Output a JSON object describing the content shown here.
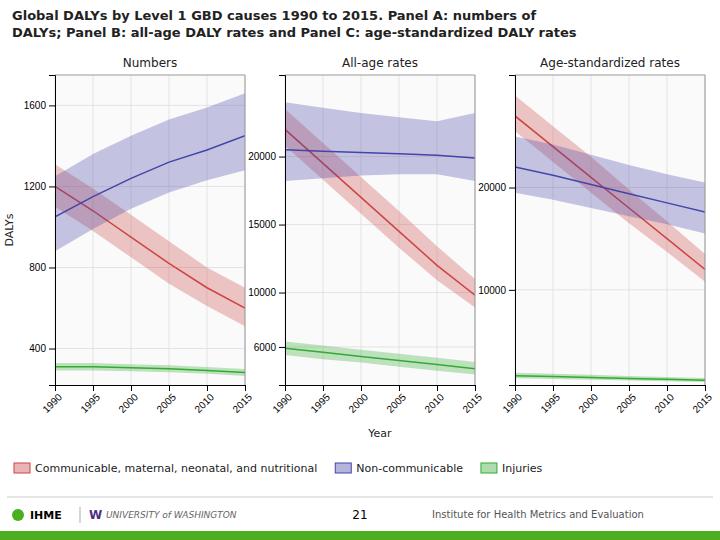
{
  "title": [
    "Global DALYs by Level 1 GBD causes 1990 to 2015.  Panel A: numbers of",
    "DALYs; Panel B: all-age DALY rates and Panel C: age-standardized DALY rates"
  ],
  "annotations": [
    "IHME",
    "W",
    "UNIVERSITY of WASHINGTON",
    "21",
    "Institute for Health Metrics and Evaluation"
  ],
  "chart_data": [
    {
      "type": "line",
      "title": "Numbers",
      "ylabel": "DALYs",
      "x": [
        1990,
        1995,
        2000,
        2005,
        2010,
        2015
      ],
      "xlim": [
        1990,
        2015
      ],
      "xticks": [
        1990,
        1995,
        2000,
        2005,
        2010,
        2015
      ],
      "ylim": [
        220,
        1750
      ],
      "yticks": [
        400,
        800,
        1200,
        1600
      ],
      "grid": true,
      "legend": "bottom",
      "series": [
        {
          "name": "Communicable, maternal, neonatal, and nutritional",
          "color": "#cc4444",
          "values": [
            1200,
            1080,
            950,
            820,
            700,
            600
          ],
          "lower": [
            1100,
            980,
            850,
            720,
            610,
            510
          ],
          "upper": [
            1310,
            1190,
            1060,
            930,
            800,
            700
          ]
        },
        {
          "name": "Non-communicable",
          "color": "#4444aa",
          "values": [
            1050,
            1150,
            1240,
            1320,
            1380,
            1450
          ],
          "lower": [
            880,
            990,
            1090,
            1170,
            1230,
            1280
          ],
          "upper": [
            1250,
            1360,
            1450,
            1530,
            1590,
            1660
          ]
        },
        {
          "name": "Injuries",
          "color": "#33aa33",
          "values": [
            310,
            310,
            305,
            300,
            292,
            282
          ],
          "lower": [
            292,
            292,
            288,
            283,
            275,
            265
          ],
          "upper": [
            328,
            328,
            322,
            317,
            309,
            299
          ]
        }
      ]
    },
    {
      "type": "line",
      "title": "All-age rates",
      "xlabel": "Year",
      "x": [
        1990,
        1995,
        2000,
        2005,
        2010,
        2015
      ],
      "xlim": [
        1990,
        2015
      ],
      "xticks": [
        1990,
        1995,
        2000,
        2005,
        2010,
        2015
      ],
      "ylim": [
        3200,
        26000
      ],
      "yticks": [
        6000,
        10000,
        15000,
        20000
      ],
      "grid": true,
      "series": [
        {
          "name": "Communicable, maternal, neonatal, and nutritional",
          "color": "#cc4444",
          "values": [
            22000,
            19500,
            17000,
            14500,
            12000,
            9800
          ],
          "lower": [
            20800,
            18300,
            15800,
            13300,
            10900,
            8900
          ],
          "upper": [
            23500,
            21000,
            18500,
            16000,
            13400,
            11000
          ]
        },
        {
          "name": "Non-communicable",
          "color": "#4444aa",
          "values": [
            20500,
            20400,
            20300,
            20200,
            20100,
            19900
          ],
          "lower": [
            18200,
            18400,
            18600,
            18700,
            18700,
            18200
          ],
          "upper": [
            24000,
            23600,
            23200,
            22900,
            22600,
            23200
          ]
        },
        {
          "name": "Injuries",
          "color": "#33aa33",
          "values": [
            5900,
            5600,
            5300,
            5000,
            4700,
            4400
          ],
          "lower": [
            5400,
            5100,
            4850,
            4550,
            4250,
            3980
          ],
          "upper": [
            6400,
            6100,
            5800,
            5500,
            5200,
            4900
          ]
        }
      ]
    },
    {
      "type": "line",
      "title": "Age-standardized rates",
      "x": [
        1990,
        1995,
        2000,
        2005,
        2010,
        2015
      ],
      "xlim": [
        1990,
        2015
      ],
      "xticks": [
        1990,
        1995,
        2000,
        2005,
        2010,
        2015
      ],
      "ylim": [
        700,
        31000
      ],
      "yticks": [
        10000,
        20000
      ],
      "grid": true,
      "series": [
        {
          "name": "Communicable, maternal, neonatal, and nutritional",
          "color": "#cc4444",
          "values": [
            27000,
            24000,
            21000,
            18000,
            15000,
            12000
          ],
          "lower": [
            25500,
            22500,
            19500,
            16500,
            13700,
            10800
          ],
          "upper": [
            29000,
            26000,
            23000,
            19800,
            16700,
            13500
          ]
        },
        {
          "name": "Non-communicable",
          "color": "#4444aa",
          "values": [
            22000,
            21200,
            20300,
            19400,
            18500,
            17600
          ],
          "lower": [
            19500,
            18800,
            18000,
            17200,
            16400,
            15500
          ],
          "upper": [
            25000,
            24200,
            23200,
            22200,
            21300,
            20500
          ]
        },
        {
          "name": "Injuries",
          "color": "#33aa33",
          "values": [
            1600,
            1520,
            1430,
            1340,
            1250,
            1160
          ],
          "lower": [
            1350,
            1290,
            1220,
            1140,
            1060,
            990
          ],
          "upper": [
            1900,
            1800,
            1700,
            1590,
            1480,
            1380
          ]
        }
      ]
    }
  ]
}
